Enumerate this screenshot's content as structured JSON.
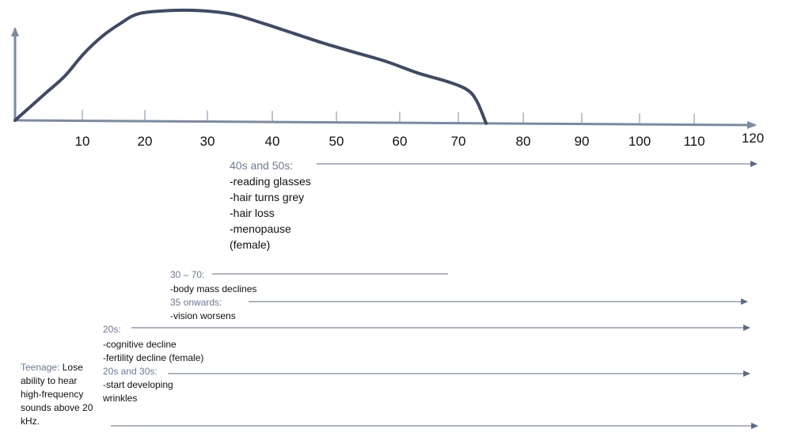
{
  "chart_data": {
    "type": "line",
    "title": "",
    "xlabel": "",
    "ylabel": "",
    "x_ticks": [
      "10",
      "20",
      "30",
      "40",
      "50",
      "60",
      "70",
      "80",
      "90",
      "100",
      "110",
      "120"
    ],
    "xlim": [
      0,
      120
    ],
    "curve_x": [
      0,
      2,
      5,
      8,
      11,
      14,
      17,
      20,
      25,
      30,
      35,
      40,
      45,
      50,
      55,
      60,
      65,
      70,
      73,
      74.5,
      76
    ],
    "curve_y": [
      0,
      0.1,
      0.25,
      0.4,
      0.6,
      0.76,
      0.88,
      0.97,
      1.0,
      1.0,
      0.97,
      0.89,
      0.8,
      0.71,
      0.63,
      0.55,
      0.45,
      0.37,
      0.3,
      0.2,
      0.0
    ]
  },
  "annotations": {
    "forties": {
      "heading": "40s and 50s:",
      "lines": [
        "-reading glasses",
        "-hair turns grey",
        "-hair loss",
        "-menopause",
        "(female)"
      ]
    },
    "thirty_seventy": {
      "heading": "30 – 70:",
      "lines": [
        "-body mass declines"
      ]
    },
    "thirty_five": {
      "heading": "35 onwards:",
      "lines": [
        "-vision worsens"
      ]
    },
    "twenties": {
      "heading": "20s:",
      "lines": [
        "-cognitive decline",
        "-fertility decline (female)"
      ]
    },
    "twenties_thirties": {
      "heading": "20s and 30s:",
      "lines": [
        "-start developing",
        "wrinkles"
      ]
    },
    "teenage": {
      "heading": "Teenage:",
      "first_line": "Lose",
      "lines": [
        "ability to hear",
        "high-frequency",
        "sounds above 20",
        "kHz."
      ]
    }
  },
  "colors": {
    "curve": "#3f4a66",
    "axis": "#6b7a93",
    "heading": "#6b7a93",
    "text": "#111111"
  }
}
